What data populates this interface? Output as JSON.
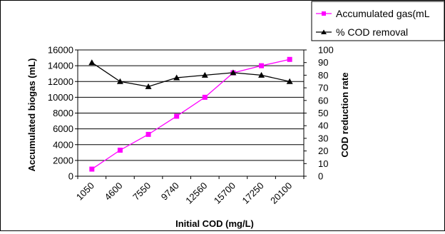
{
  "chart_data": {
    "type": "line",
    "categories": [
      "1050",
      "4600",
      "7550",
      "9740",
      "12560",
      "15700",
      "17250",
      "20100"
    ],
    "series": [
      {
        "name": "Accumulated gas(mL",
        "axis": "left",
        "color": "#ff00ff",
        "marker": "square",
        "values": [
          900,
          3300,
          5300,
          7600,
          10000,
          13100,
          14000,
          14800
        ]
      },
      {
        "name": "% COD removal",
        "axis": "right",
        "color": "#000000",
        "marker": "triangle",
        "values": [
          90,
          75,
          71,
          78,
          80,
          82,
          80,
          75
        ]
      }
    ],
    "xlabel": "Initial COD (mg/L)",
    "ylabel": "Accumulated biogas (mL)",
    "y2label": "COD reduction rate",
    "ylim": [
      0,
      16000
    ],
    "y2lim": [
      0,
      100
    ],
    "yticks": [
      "0",
      "2000",
      "4000",
      "6000",
      "8000",
      "10000",
      "12000",
      "14000",
      "16000"
    ],
    "y2ticks": [
      "0",
      "10",
      "20",
      "30",
      "40",
      "50",
      "60",
      "70",
      "80",
      "90",
      "100"
    ],
    "grid": "horizontal major gridlines",
    "legend_position": "top-right"
  }
}
